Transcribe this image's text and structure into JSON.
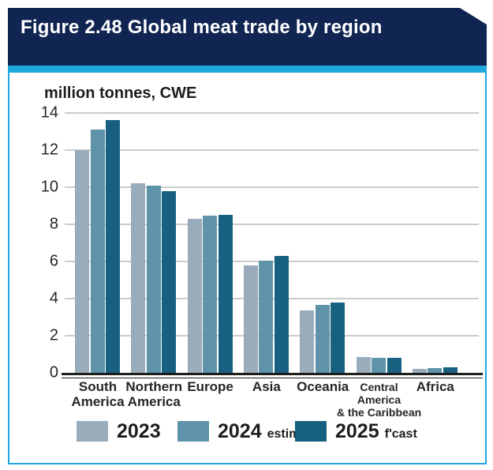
{
  "figure": {
    "title": "Figure 2.48 Global meat trade by region",
    "unit_label": "million tonnes, CWE"
  },
  "colors": {
    "header_navy": "#112552",
    "accent_cyan": "#1fa8df",
    "bar_2023": "#9aacbb",
    "bar_2024": "#5e93aa",
    "bar_2025": "#17607f",
    "gridline_gray": "#cccccc",
    "axis_black": "#1d1d1b"
  },
  "chart_data": {
    "type": "bar",
    "title": "Figure 2.48 Global meat trade by region",
    "ylabel": "million tonnes, CWE",
    "xlabel": "",
    "ylim": [
      0,
      14
    ],
    "ytick_step": 2,
    "yticks": [
      0,
      2,
      4,
      6,
      8,
      10,
      12,
      14
    ],
    "grid": true,
    "legend_position": "bottom",
    "categories": [
      {
        "label": "South America",
        "lines": [
          "South",
          "America"
        ],
        "small": false
      },
      {
        "label": "Northern America",
        "lines": [
          "Northern",
          "America"
        ],
        "small": false
      },
      {
        "label": "Europe",
        "lines": [
          "Europe"
        ],
        "small": false
      },
      {
        "label": "Asia",
        "lines": [
          "Asia"
        ],
        "small": false
      },
      {
        "label": "Oceania",
        "lines": [
          "Oceania"
        ],
        "small": false
      },
      {
        "label": "Central America & the Caribbean",
        "lines": [
          "Central",
          "America",
          "& the Caribbean"
        ],
        "small": true
      },
      {
        "label": "Africa",
        "lines": [
          "Africa"
        ],
        "small": false
      }
    ],
    "series": [
      {
        "name": "2023",
        "note": "",
        "color": "#9aacbb",
        "values": [
          12.0,
          10.2,
          8.3,
          5.8,
          3.35,
          0.85,
          0.2
        ]
      },
      {
        "name": "2024",
        "note": "estim.",
        "color": "#5e93aa",
        "values": [
          13.1,
          10.1,
          8.45,
          6.05,
          3.65,
          0.8,
          0.27
        ]
      },
      {
        "name": "2025",
        "note": "f'cast",
        "color": "#17607f",
        "values": [
          13.6,
          9.8,
          8.5,
          6.3,
          3.8,
          0.8,
          0.3
        ]
      }
    ]
  }
}
